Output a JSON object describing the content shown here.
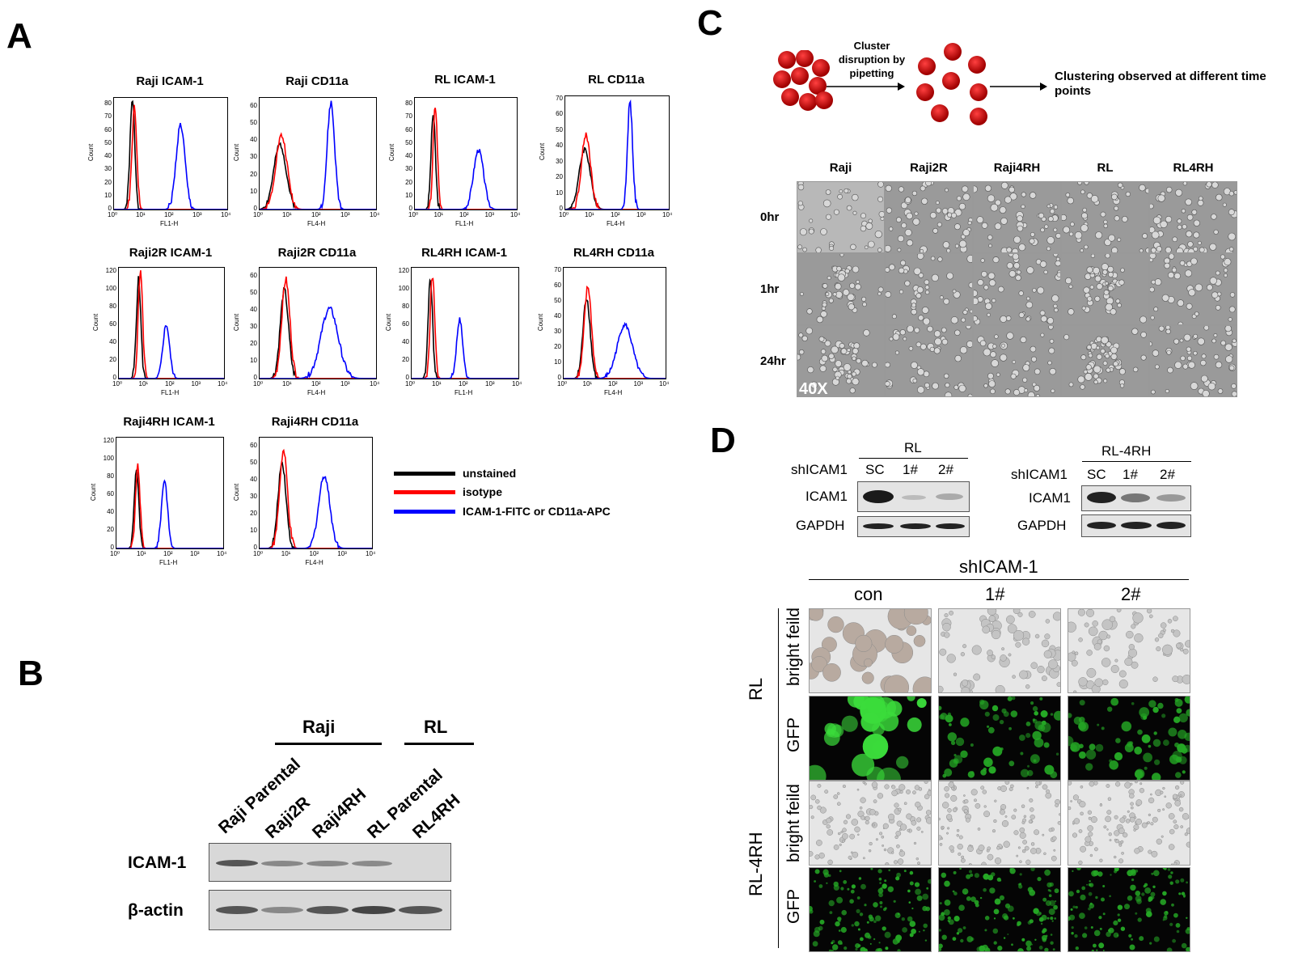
{
  "panels": {
    "A": "A",
    "B": "B",
    "C": "C",
    "D": "D"
  },
  "panel_a": {
    "plots": [
      {
        "title": "Raji ICAM-1",
        "xlabel": "FL1-H",
        "ylabel": "Count",
        "yticks": [
          "0",
          "10",
          "20",
          "30",
          "40",
          "50",
          "60",
          "70",
          "80"
        ],
        "ymax": 85
      },
      {
        "title": "Raji CD11a",
        "xlabel": "FL4-H",
        "ylabel": "Count",
        "yticks": [
          "0",
          "10",
          "20",
          "30",
          "40",
          "50",
          "60"
        ],
        "ymax": 65
      },
      {
        "title": "RL ICAM-1",
        "xlabel": "FL1-H",
        "ylabel": "Count",
        "yticks": [
          "0",
          "10",
          "20",
          "30",
          "40",
          "50",
          "60",
          "70",
          "80"
        ],
        "ymax": 85
      },
      {
        "title": "RL CD11a",
        "xlabel": "FL4-H",
        "ylabel": "Count",
        "yticks": [
          "0",
          "10",
          "20",
          "30",
          "40",
          "50",
          "60",
          "70"
        ],
        "ymax": 72
      },
      {
        "title": "Raji2R ICAM-1",
        "xlabel": "FL1-H",
        "ylabel": "Count",
        "yticks": [
          "0",
          "20",
          "40",
          "60",
          "80",
          "100",
          "120"
        ],
        "ymax": 125
      },
      {
        "title": "Raji2R CD11a",
        "xlabel": "FL4-H",
        "ylabel": "Count",
        "yticks": [
          "0",
          "10",
          "20",
          "30",
          "40",
          "50",
          "60"
        ],
        "ymax": 65
      },
      {
        "title": "RL4RH ICAM-1",
        "xlabel": "FL1-H",
        "ylabel": "Count",
        "yticks": [
          "0",
          "20",
          "40",
          "60",
          "80",
          "100",
          "120"
        ],
        "ymax": 125
      },
      {
        "title": "RL4RH CD11a",
        "xlabel": "FL4-H",
        "ylabel": "Count",
        "yticks": [
          "0",
          "10",
          "20",
          "30",
          "40",
          "50",
          "60",
          "70"
        ],
        "ymax": 72
      },
      {
        "title": "Raji4RH ICAM-1",
        "xlabel": "FL1-H",
        "ylabel": "Count",
        "yticks": [
          "0",
          "20",
          "40",
          "60",
          "80",
          "100",
          "120"
        ],
        "ymax": 125
      },
      {
        "title": "Raji4RH CD11a",
        "xlabel": "FL4-H",
        "ylabel": "Count",
        "yticks": [
          "0",
          "10",
          "20",
          "30",
          "40",
          "50",
          "60"
        ],
        "ymax": 65
      }
    ],
    "xticks": [
      "10⁰",
      "10¹",
      "10²",
      "10³",
      "10⁴"
    ],
    "legend": [
      {
        "label": "unstained",
        "color": "#000000"
      },
      {
        "label": "isotype",
        "color": "#ff0000"
      },
      {
        "label": "ICAM-1-FITC  or CD11a-APC",
        "color": "#0000ff"
      }
    ]
  },
  "panel_b": {
    "groups": [
      "Raji",
      "RL"
    ],
    "lanes": [
      "Raji Parental",
      "Raji2R",
      "Raji4RH",
      "RL Parental",
      "RL4RH"
    ],
    "rows": [
      "ICAM-1",
      "β-actin"
    ]
  },
  "panel_c": {
    "step1": "Cluster disruption by pipetting",
    "step2": "Clustering observed at different time points",
    "columns": [
      "Raji",
      "Raji2R",
      "Raji4RH",
      "RL",
      "RL4RH"
    ],
    "rows": [
      "0hr",
      "1hr",
      "24hr"
    ],
    "magnification": "40X"
  },
  "panel_d": {
    "blot_left": {
      "title": "RL",
      "sh_label": "shICAM1",
      "lanes": [
        "SC",
        "1#",
        "2#"
      ],
      "rows": [
        "ICAM1",
        "GAPDH"
      ]
    },
    "blot_right": {
      "title": "RL-4RH",
      "sh_label": "shICAM1",
      "lanes": [
        "SC",
        "1#",
        "2#"
      ],
      "rows": [
        "ICAM1",
        "GAPDH"
      ]
    },
    "grid_header": "shICAM-1",
    "grid_columns": [
      "con",
      "1#",
      "2#"
    ],
    "groups": [
      "RL",
      "RL-4RH"
    ],
    "row_labels": [
      "bright feild",
      "GFP",
      "bright feild",
      "GFP"
    ]
  },
  "colors": {
    "unstained": "#000000",
    "isotype": "#ff0000",
    "stain": "#0000ff",
    "cell_red": "#d00000",
    "gfp": "#2bd12b"
  }
}
